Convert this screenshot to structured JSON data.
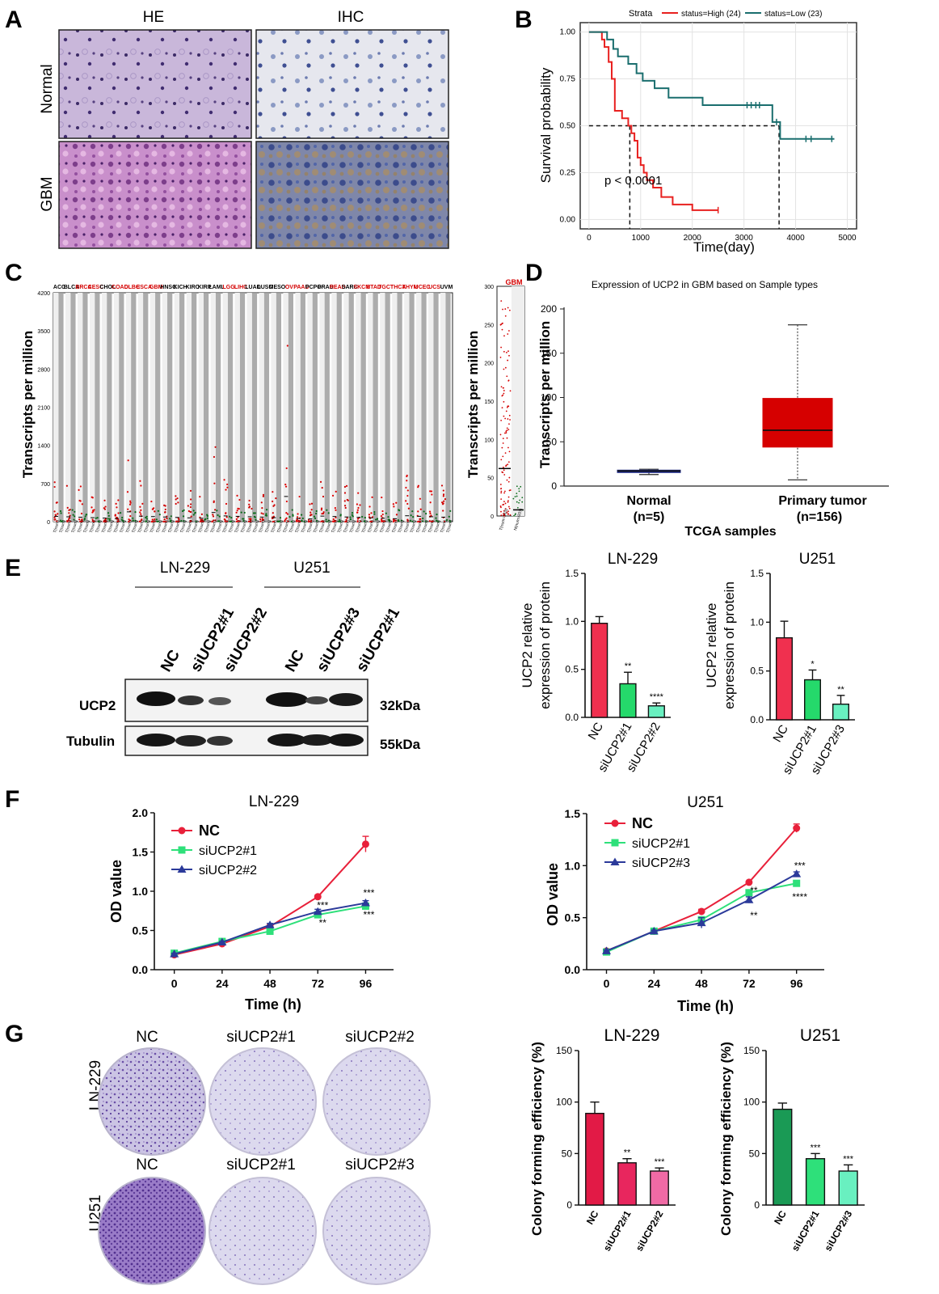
{
  "panels": {
    "A": {
      "label": "A",
      "cols": [
        "HE",
        "IHC"
      ],
      "rows": [
        "Normal",
        "GBM"
      ]
    },
    "B": {
      "label": "B",
      "legend_title": "Strata",
      "legend_high": "status=High (24)",
      "legend_low": "status=Low (23)",
      "pvalue": "p < 0.0001",
      "xlabel": "Time(day)",
      "ylabel": "Survival probability"
    },
    "C": {
      "label": "C",
      "ylabel": "Transcripts per million",
      "cancers": [
        {
          "n": "ACC",
          "red": false
        },
        {
          "n": "BLCA",
          "red": false
        },
        {
          "n": "BRCA",
          "red": true
        },
        {
          "n": "CESC",
          "red": true
        },
        {
          "n": "CHOL",
          "red": false
        },
        {
          "n": "COAD",
          "red": true
        },
        {
          "n": "DLBC",
          "red": true
        },
        {
          "n": "ESCA",
          "red": true
        },
        {
          "n": "GBM",
          "red": true
        },
        {
          "n": "HNSC",
          "red": false
        },
        {
          "n": "KICH",
          "red": false
        },
        {
          "n": "KIRC",
          "red": false
        },
        {
          "n": "KIRP",
          "red": false
        },
        {
          "n": "LAML",
          "red": false
        },
        {
          "n": "LGG",
          "red": true
        },
        {
          "n": "LIHC",
          "red": true
        },
        {
          "n": "LUAD",
          "red": false
        },
        {
          "n": "LUSC",
          "red": false
        },
        {
          "n": "MESO",
          "red": false
        },
        {
          "n": "OV",
          "red": true
        },
        {
          "n": "PAAD",
          "red": true
        },
        {
          "n": "PCPG",
          "red": false
        },
        {
          "n": "PRAD",
          "red": false
        },
        {
          "n": "READ",
          "red": true
        },
        {
          "n": "SARC",
          "red": false
        },
        {
          "n": "SKCM",
          "red": true
        },
        {
          "n": "STAD",
          "red": true
        },
        {
          "n": "TGCT",
          "red": true
        },
        {
          "n": "THCA",
          "red": true
        },
        {
          "n": "THYM",
          "red": true
        },
        {
          "n": "UCEC",
          "red": true
        },
        {
          "n": "UCS",
          "red": true
        },
        {
          "n": "UVM",
          "red": false
        }
      ],
      "inset_label": "GBM"
    },
    "D": {
      "label": "D",
      "title": "Expression of UCP2 in GBM based on Sample types",
      "ylabel": "Transcripts per million",
      "xlabel": "TCGA samples",
      "groups": [
        {
          "name": "Normal",
          "n": "(n=5)"
        },
        {
          "name": "Primary tumor",
          "n": "(n=156)"
        }
      ]
    },
    "E": {
      "label": "E",
      "cell_lines": [
        "LN-229",
        "U251"
      ],
      "lanes": [
        "NC",
        "siUCP2#1",
        "siUCP2#2",
        "NC",
        "siUCP2#3",
        "siUCP2#1"
      ],
      "bands": [
        {
          "name": "UCP2",
          "size": "32kDa"
        },
        {
          "name": "Tubulin",
          "size": "55kDa"
        }
      ],
      "ylabel": [
        "UCP2 relative",
        "expression of protein"
      ]
    },
    "F": {
      "label": "F",
      "xlabel": "Time (h)",
      "ylabel": "OD value"
    },
    "G": {
      "label": "G",
      "rows": [
        {
          "cell": "LN-229",
          "conds": [
            "NC",
            "siUCP2#1",
            "siUCP2#2"
          ]
        },
        {
          "cell": "U251",
          "conds": [
            "NC",
            "siUCP2#1",
            "siUCP2#3"
          ]
        }
      ],
      "ylabel": "Colony forming efficiency (%)"
    }
  },
  "chart_data": [
    {
      "id": "B",
      "type": "line",
      "title": "",
      "xlabel": "Time(day)",
      "ylabel": "Survival probability",
      "xlim": [
        0,
        5000
      ],
      "ylim": [
        0,
        1
      ],
      "xticks": [
        0,
        1000,
        2000,
        3000,
        4000,
        5000
      ],
      "yticks": [
        0.0,
        0.25,
        0.5,
        0.75,
        1.0
      ],
      "series": [
        {
          "name": "status=High (24)",
          "color": "#e8201f",
          "x": [
            0,
            250,
            300,
            380,
            440,
            500,
            640,
            760,
            820,
            880,
            940,
            1000,
            1060,
            1120,
            1240,
            1400,
            1620,
            2000,
            2500
          ],
          "y": [
            1.0,
            0.96,
            0.92,
            0.84,
            0.75,
            0.58,
            0.54,
            0.5,
            0.46,
            0.42,
            0.33,
            0.29,
            0.25,
            0.21,
            0.17,
            0.12,
            0.08,
            0.05,
            0.05
          ]
        },
        {
          "name": "status=Low (23)",
          "color": "#1a6e6e",
          "x": [
            0,
            350,
            470,
            560,
            760,
            920,
            1040,
            1270,
            1540,
            2200,
            3100,
            3400,
            3550,
            3640,
            3700,
            4200,
            4750
          ],
          "y": [
            1.0,
            0.96,
            0.91,
            0.87,
            0.83,
            0.78,
            0.74,
            0.7,
            0.65,
            0.61,
            0.61,
            0.61,
            0.52,
            0.52,
            0.43,
            0.43,
            0.43
          ]
        }
      ],
      "medians": [
        {
          "x": 790,
          "y": 0.5
        },
        {
          "x": 3680,
          "y": 0.5
        }
      ],
      "annotation": "p < 0.0001"
    },
    {
      "id": "C",
      "type": "scatter",
      "title": "",
      "ylabel": "Transcripts per million",
      "ylim": [
        0,
        4200
      ],
      "yticks": [
        0,
        700,
        1400,
        2100,
        2800,
        3500,
        4200
      ],
      "inset": {
        "ylim": [
          0,
          300
        ],
        "yticks": [
          0,
          50,
          100,
          150,
          200,
          250,
          300
        ],
        "tumor_median": 62,
        "normal_median": 8
      }
    },
    {
      "id": "D",
      "type": "box",
      "title": "Expression of UCP2 in GBM based on Sample types",
      "xlabel": "TCGA samples",
      "ylabel": "Transcripts per million",
      "ylim": [
        0,
        200
      ],
      "yticks": [
        0,
        50,
        100,
        150,
        200
      ],
      "categories": [
        "Normal",
        "Primary tumor"
      ],
      "boxes": [
        {
          "min": 13,
          "q1": 16,
          "median": 17,
          "q3": 18,
          "max": 19,
          "color": "#1e2a8a"
        },
        {
          "min": 7,
          "q1": 44,
          "median": 63,
          "q3": 99,
          "max": 182,
          "color": "#d60000"
        }
      ]
    },
    {
      "id": "E-LN229",
      "type": "bar",
      "title": "LN-229",
      "ylabel": "UCP2 relative expression of protein",
      "ylim": [
        0,
        1.5
      ],
      "yticks": [
        0.0,
        0.5,
        1.0,
        1.5
      ],
      "categories": [
        "NC",
        "siUCP2#1",
        "siUCP2#2"
      ],
      "values": [
        0.98,
        0.35,
        0.12
      ],
      "errors": [
        0.07,
        0.12,
        0.03
      ],
      "sig": [
        "",
        "**",
        "****"
      ],
      "colors": [
        "#f0304f",
        "#25d96b",
        "#69f0c0"
      ]
    },
    {
      "id": "E-U251",
      "type": "bar",
      "title": "U251",
      "ylabel": "UCP2 relative expression of protein",
      "ylim": [
        0,
        1.5
      ],
      "yticks": [
        0.0,
        0.5,
        1.0,
        1.5
      ],
      "categories": [
        "NC",
        "siUCP2#1",
        "siUCP2#3"
      ],
      "values": [
        0.84,
        0.41,
        0.16
      ],
      "errors": [
        0.17,
        0.1,
        0.09
      ],
      "sig": [
        "",
        "*",
        "**"
      ],
      "colors": [
        "#f0304f",
        "#25d96b",
        "#69f0c0"
      ]
    },
    {
      "id": "F-LN229",
      "type": "line",
      "title": "LN-229",
      "xlabel": "Time (h)",
      "ylabel": "OD value",
      "x": [
        0,
        24,
        48,
        72,
        96
      ],
      "ylim": [
        0,
        2.0
      ],
      "yticks": [
        0.0,
        0.5,
        1.0,
        1.5,
        2.0
      ],
      "series": [
        {
          "name": "NC",
          "color": "#e8203a",
          "marker": "circle",
          "values": [
            0.19,
            0.33,
            0.55,
            0.93,
            1.6
          ],
          "errors": [
            0.01,
            0.01,
            0.02,
            0.02,
            0.1
          ]
        },
        {
          "name": "siUCP2#1",
          "color": "#2ee07a",
          "marker": "square",
          "values": [
            0.21,
            0.36,
            0.49,
            0.7,
            0.81
          ],
          "errors": [
            0.01,
            0.01,
            0.02,
            0.04,
            0.03
          ]
        },
        {
          "name": "siUCP2#2",
          "color": "#2b3a9a",
          "marker": "triangle",
          "values": [
            0.2,
            0.35,
            0.57,
            0.74,
            0.85
          ],
          "errors": [
            0.01,
            0.01,
            0.02,
            0.03,
            0.03
          ]
        }
      ],
      "annotations": [
        {
          "x": 72,
          "y": 0.82,
          "text": "***"
        },
        {
          "x": 72,
          "y": 0.6,
          "text": "**"
        },
        {
          "x": 96,
          "y": 0.98,
          "text": "***"
        },
        {
          "x": 96,
          "y": 0.7,
          "text": "***"
        }
      ]
    },
    {
      "id": "F-U251",
      "type": "line",
      "title": "U251",
      "xlabel": "Time (h)",
      "ylabel": "OD value",
      "x": [
        0,
        24,
        48,
        72,
        96
      ],
      "ylim": [
        0,
        1.5
      ],
      "yticks": [
        0.0,
        0.5,
        1.0,
        1.5
      ],
      "series": [
        {
          "name": "NC",
          "color": "#e8203a",
          "marker": "circle",
          "values": [
            0.18,
            0.37,
            0.56,
            0.84,
            1.36
          ],
          "errors": [
            0.01,
            0.01,
            0.02,
            0.01,
            0.04
          ]
        },
        {
          "name": "siUCP2#1",
          "color": "#2ee07a",
          "marker": "square",
          "values": [
            0.17,
            0.37,
            0.48,
            0.74,
            0.83
          ],
          "errors": [
            0.01,
            0.01,
            0.02,
            0.02,
            0.02
          ]
        },
        {
          "name": "siUCP2#3",
          "color": "#2b3a9a",
          "marker": "triangle",
          "values": [
            0.18,
            0.37,
            0.45,
            0.67,
            0.92
          ],
          "errors": [
            0.01,
            0.01,
            0.05,
            0.03,
            0.02
          ]
        }
      ],
      "annotations": [
        {
          "x": 72,
          "y": 0.76,
          "text": "**"
        },
        {
          "x": 72,
          "y": 0.52,
          "text": "**"
        },
        {
          "x": 96,
          "y": 1.0,
          "text": "***"
        },
        {
          "x": 96,
          "y": 0.7,
          "text": "****"
        }
      ]
    },
    {
      "id": "G-LN229",
      "type": "bar",
      "title": "LN-229",
      "ylabel": "Colony forming efficiency (%)",
      "ylim": [
        0,
        150
      ],
      "yticks": [
        0,
        50,
        100,
        150
      ],
      "categories": [
        "NC",
        "siUCP2#1",
        "siUCP2#2"
      ],
      "values": [
        89,
        41,
        33
      ],
      "errors": [
        11,
        4,
        3
      ],
      "sig": [
        "",
        "**",
        "***"
      ],
      "colors": [
        "#e21a46",
        "#e8265e",
        "#f06aa5"
      ]
    },
    {
      "id": "G-U251",
      "type": "bar",
      "title": "U251",
      "ylabel": "Colony forming efficiency (%)",
      "ylim": [
        0,
        150
      ],
      "yticks": [
        0,
        50,
        100,
        150
      ],
      "categories": [
        "NC",
        "siUCP2#1",
        "siUCP2#3"
      ],
      "values": [
        93,
        45,
        33
      ],
      "errors": [
        6,
        5,
        6
      ],
      "sig": [
        "",
        "***",
        "***"
      ],
      "colors": [
        "#1a9a55",
        "#2ee07a",
        "#69f0c0"
      ]
    }
  ]
}
